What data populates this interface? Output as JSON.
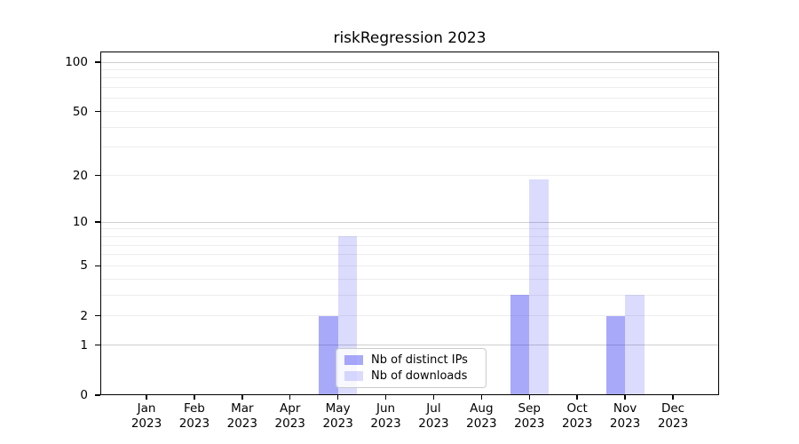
{
  "chart_data": {
    "type": "bar",
    "title": "riskRegression 2023",
    "categories": [
      "Jan",
      "Feb",
      "Mar",
      "Apr",
      "May",
      "Jun",
      "Jul",
      "Aug",
      "Sep",
      "Oct",
      "Nov",
      "Dec"
    ],
    "category_year": "2023",
    "series": [
      {
        "name": "Nb of distinct IPs",
        "color": "rgba(30,30,240,0.38)",
        "values": [
          0,
          0,
          0,
          0,
          2,
          0,
          0,
          0,
          3,
          0,
          2,
          0
        ]
      },
      {
        "name": "Nb of downloads",
        "color": "rgba(30,30,240,0.16)",
        "values": [
          0,
          0,
          0,
          0,
          8,
          0,
          0,
          0,
          19,
          0,
          3,
          0
        ]
      }
    ],
    "xlabel": "",
    "ylabel": "",
    "y_axis": {
      "scale": "log1p",
      "tick_values": [
        0,
        1,
        2,
        5,
        10,
        20,
        50,
        100
      ],
      "major_gridlines": [
        1,
        10,
        100
      ],
      "minor_gridlines": [
        2,
        3,
        4,
        5,
        6,
        7,
        8,
        9,
        20,
        30,
        40,
        50,
        60,
        70,
        80,
        90
      ],
      "range": [
        0,
        117
      ]
    },
    "grid": true,
    "legend": {
      "position": "lower center",
      "entries": [
        "Nb of distinct IPs",
        "Nb of downloads"
      ]
    },
    "axis_color": "#000000",
    "background_color": "#ffffff"
  }
}
